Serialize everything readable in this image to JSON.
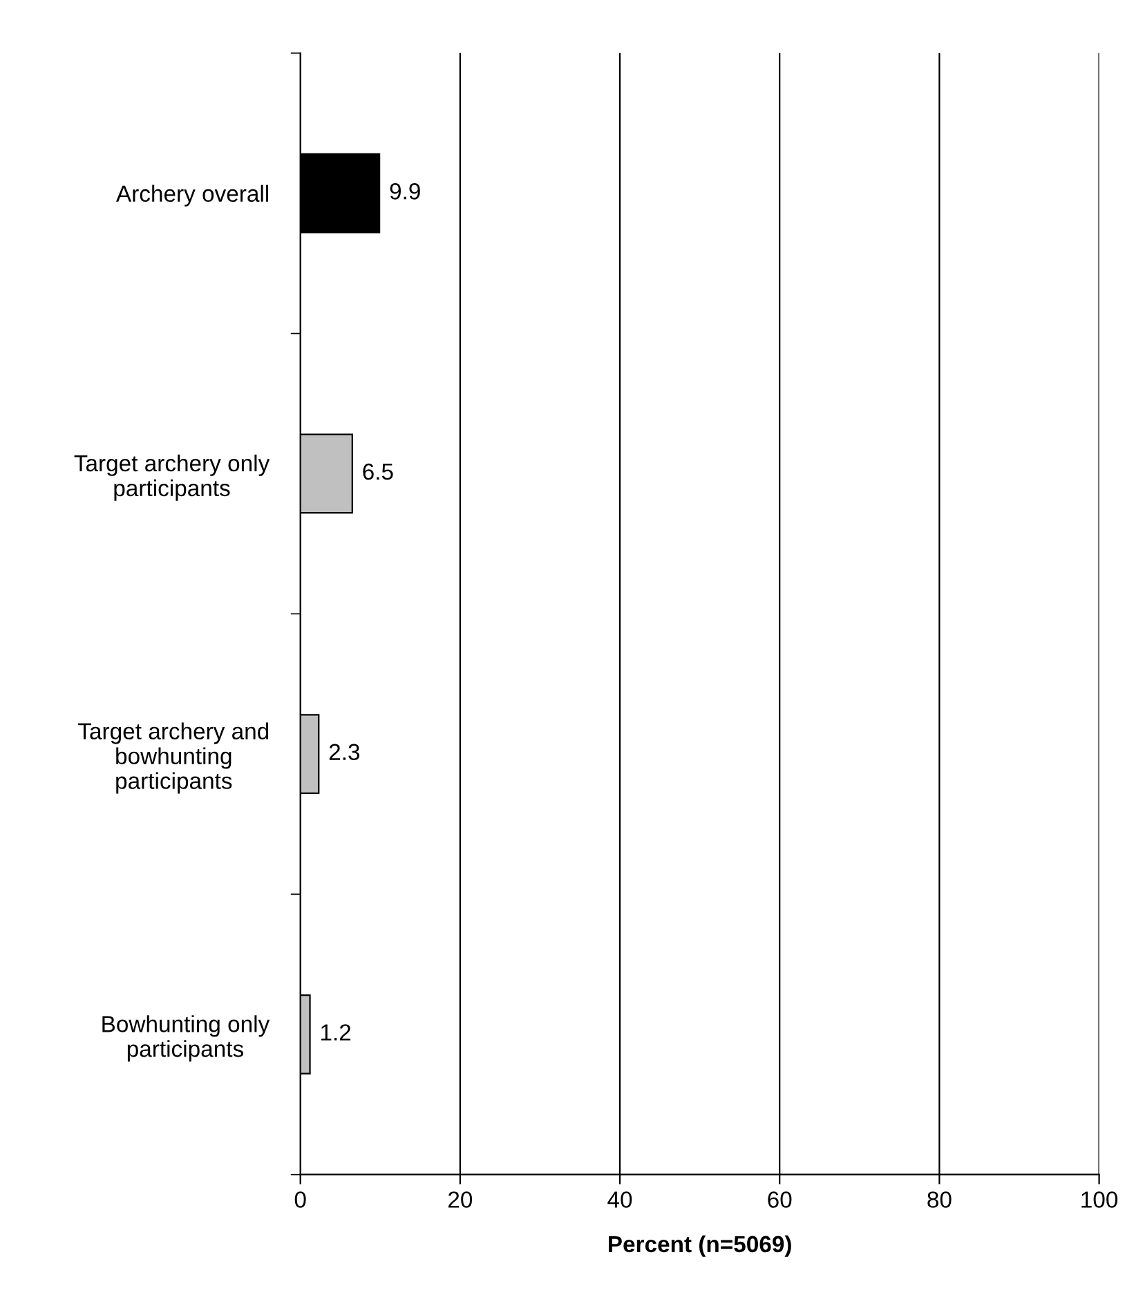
{
  "chart_data": {
    "type": "bar",
    "orientation": "horizontal",
    "xlabel": "Percent (n=5069)",
    "categories": [
      "Archery overall",
      "Target archery only\nparticipants",
      "Target archery and\nbowhunting\nparticipants",
      "Bowhunting only\nparticipants"
    ],
    "values": [
      9.9,
      6.5,
      2.3,
      1.2
    ],
    "colors": [
      "#000000",
      "#c0c0c0",
      "#c0c0c0",
      "#c0c0c0"
    ],
    "xlim": [
      0,
      100
    ],
    "xticks": [
      0,
      20,
      40,
      60,
      80,
      100
    ],
    "grid": "x",
    "data_labels": true
  }
}
